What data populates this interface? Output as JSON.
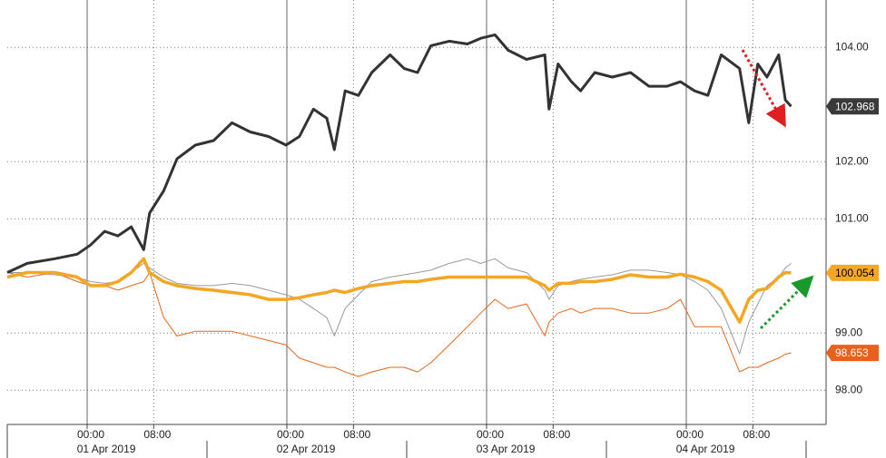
{
  "chart_data": {
    "type": "line",
    "x": [
      -9.6,
      -7.2,
      -3.9,
      -1.2,
      0.4,
      2.1,
      3.7,
      5.3,
      6.8,
      7.5,
      9.2,
      10.8,
      13.0,
      15.2,
      17.4,
      19.6,
      21.8,
      23.9,
      25.5,
      27.2,
      28.8,
      29.7,
      31.0,
      32.6,
      34.2,
      36.4,
      38.1,
      39.7,
      41.3,
      43.5,
      45.7,
      47.3,
      49.0,
      50.6,
      52.8,
      55.0,
      55.5,
      56.6,
      58.2,
      59.3,
      61.0,
      63.1,
      65.3,
      67.5,
      69.7,
      71.3,
      73.0,
      74.6,
      76.2,
      78.4,
      79.5,
      80.6,
      81.7,
      83.1,
      83.9,
      84.6
    ],
    "series": [
      {
        "color": "#9a9a9a",
        "width": 1,
        "end_label": false,
        "values": [
          100.06,
          100.06,
          100.02,
          99.98,
          99.9,
          99.87,
          99.9,
          100.06,
          100.22,
          100.14,
          99.98,
          99.87,
          99.83,
          99.83,
          99.87,
          99.83,
          99.75,
          99.67,
          99.59,
          99.43,
          99.27,
          98.95,
          99.43,
          99.67,
          99.9,
          99.98,
          100.02,
          100.06,
          100.1,
          100.22,
          100.3,
          100.22,
          100.3,
          100.14,
          100.06,
          99.75,
          99.59,
          99.83,
          99.9,
          99.94,
          99.98,
          100.02,
          100.1,
          100.1,
          100.06,
          100.02,
          99.9,
          99.75,
          99.43,
          98.64,
          99.19,
          99.51,
          99.83,
          99.98,
          100.14,
          100.22
        ]
      },
      {
        "color": "#e8651a",
        "width": 1,
        "end_label": true,
        "label_bg": "#e8601c",
        "label_fg": "#ffffff",
        "values": [
          100.06,
          99.98,
          100.06,
          99.9,
          99.83,
          99.83,
          99.75,
          99.83,
          99.9,
          100.06,
          99.27,
          98.95,
          99.03,
          99.03,
          99.03,
          98.95,
          98.87,
          98.79,
          98.56,
          98.48,
          98.4,
          98.4,
          98.32,
          98.24,
          98.32,
          98.4,
          98.4,
          98.32,
          98.48,
          98.79,
          99.11,
          99.35,
          99.59,
          99.43,
          99.51,
          98.95,
          99.19,
          99.35,
          99.43,
          99.35,
          99.43,
          99.43,
          99.35,
          99.35,
          99.43,
          99.59,
          99.11,
          99.11,
          99.11,
          98.32,
          98.4,
          98.4,
          98.48,
          98.56,
          98.63,
          98.653
        ]
      },
      {
        "color": "#f5a623",
        "width": 3.5,
        "end_label": true,
        "label_bg": "#f5a623",
        "label_fg": "#000000",
        "values": [
          99.98,
          100.06,
          100.06,
          99.98,
          99.83,
          99.83,
          99.9,
          100.06,
          100.3,
          100.06,
          99.9,
          99.83,
          99.78,
          99.75,
          99.71,
          99.67,
          99.59,
          99.59,
          99.62,
          99.67,
          99.71,
          99.75,
          99.71,
          99.78,
          99.83,
          99.87,
          99.9,
          99.9,
          99.94,
          99.98,
          99.98,
          99.98,
          99.98,
          99.98,
          99.98,
          99.83,
          99.75,
          99.87,
          99.87,
          99.9,
          99.9,
          99.94,
          100.02,
          99.98,
          99.98,
          100.03,
          99.98,
          99.9,
          99.75,
          99.19,
          99.59,
          99.75,
          99.78,
          99.98,
          100.06,
          100.054
        ]
      },
      {
        "color": "#333333",
        "width": 3,
        "end_label": true,
        "label_bg": "#3a3a3a",
        "label_fg": "#ffffff",
        "values": [
          100.06,
          100.22,
          100.3,
          100.38,
          100.54,
          100.78,
          100.7,
          100.86,
          100.46,
          101.1,
          101.49,
          102.05,
          102.29,
          102.37,
          102.68,
          102.52,
          102.44,
          102.29,
          102.44,
          102.92,
          102.76,
          102.21,
          103.24,
          103.16,
          103.56,
          103.87,
          103.63,
          103.56,
          104.03,
          104.11,
          104.06,
          104.16,
          104.22,
          103.95,
          103.79,
          103.87,
          102.92,
          103.71,
          103.4,
          103.24,
          103.56,
          103.48,
          103.56,
          103.32,
          103.32,
          103.4,
          103.24,
          103.16,
          103.87,
          103.63,
          102.68,
          103.71,
          103.48,
          103.87,
          103.08,
          102.968
        ]
      }
    ],
    "xlim": [
      -9.6,
      88.8
    ],
    "xticks": [
      {
        "value": 0,
        "label": "00:00"
      },
      {
        "value": 8,
        "label": "08:00"
      },
      {
        "value": 24,
        "label": "00:00"
      },
      {
        "value": 32,
        "label": "08:00"
      },
      {
        "value": 48,
        "label": "00:00"
      },
      {
        "value": 56,
        "label": "08:00"
      },
      {
        "value": 72,
        "label": "00:00"
      },
      {
        "value": 80,
        "label": "08:00"
      }
    ],
    "date_ticks": [
      {
        "value": 2.3,
        "label": "01 Apr 2019"
      },
      {
        "value": 26.3,
        "label": "02 Apr 2019"
      },
      {
        "value": 50.3,
        "label": "03 Apr 2019"
      },
      {
        "value": 74.3,
        "label": "04 Apr 2019"
      }
    ],
    "ylim": [
      97.4,
      104.83
    ],
    "yticks": [
      {
        "value": 98,
        "label": "98.00"
      },
      {
        "value": 99,
        "label": "99.00"
      },
      {
        "value": 101,
        "label": "101.00"
      },
      {
        "value": 102,
        "label": "102.00"
      },
      {
        "value": 104,
        "label": "104.00"
      }
    ],
    "grid": true
  }
}
